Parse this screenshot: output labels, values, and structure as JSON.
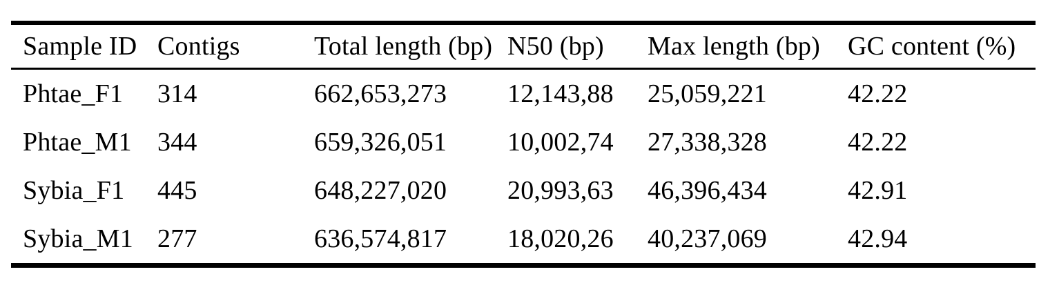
{
  "colors": {
    "background": "#ffffff",
    "text": "#000000",
    "rule": "#000000"
  },
  "table": {
    "columns": [
      "Sample ID",
      "Contigs",
      "Total length (bp)",
      "N50 (bp)",
      "Max length (bp)",
      "GC content (%)"
    ],
    "rows": [
      {
        "cells": [
          "Phtae_F1",
          "314",
          "662,653,273",
          "12,143,88",
          "25,059,221",
          "42.22"
        ]
      },
      {
        "cells": [
          "Phtae_M1",
          "344",
          "659,326,051",
          "10,002,74",
          "27,338,328",
          "42.22"
        ]
      },
      {
        "cells": [
          "Sybia_F1",
          "445",
          "648,227,020",
          "20,993,63",
          "46,396,434",
          "42.91"
        ]
      },
      {
        "cells": [
          "Sybia_M1",
          "277",
          "636,574,817",
          "18,020,26",
          "40,237,069",
          "42.94"
        ]
      }
    ]
  },
  "chart_data": {
    "type": "table",
    "title": "",
    "columns": [
      "Sample ID",
      "Contigs",
      "Total length (bp)",
      "N50 (bp)",
      "Max length (bp)",
      "GC content (%)"
    ],
    "rows": [
      [
        "Phtae_F1",
        "314",
        "662,653,273",
        "12,143,88",
        "25,059,221",
        "42.22"
      ],
      [
        "Phtae_M1",
        "344",
        "659,326,051",
        "10,002,74",
        "27,338,328",
        "42.22"
      ],
      [
        "Sybia_F1",
        "445",
        "648,227,020",
        "20,993,63",
        "46,396,434",
        "42.91"
      ],
      [
        "Sybia_M1",
        "277",
        "636,574,817",
        "18,020,26",
        "40,237,069",
        "42.94"
      ]
    ]
  }
}
